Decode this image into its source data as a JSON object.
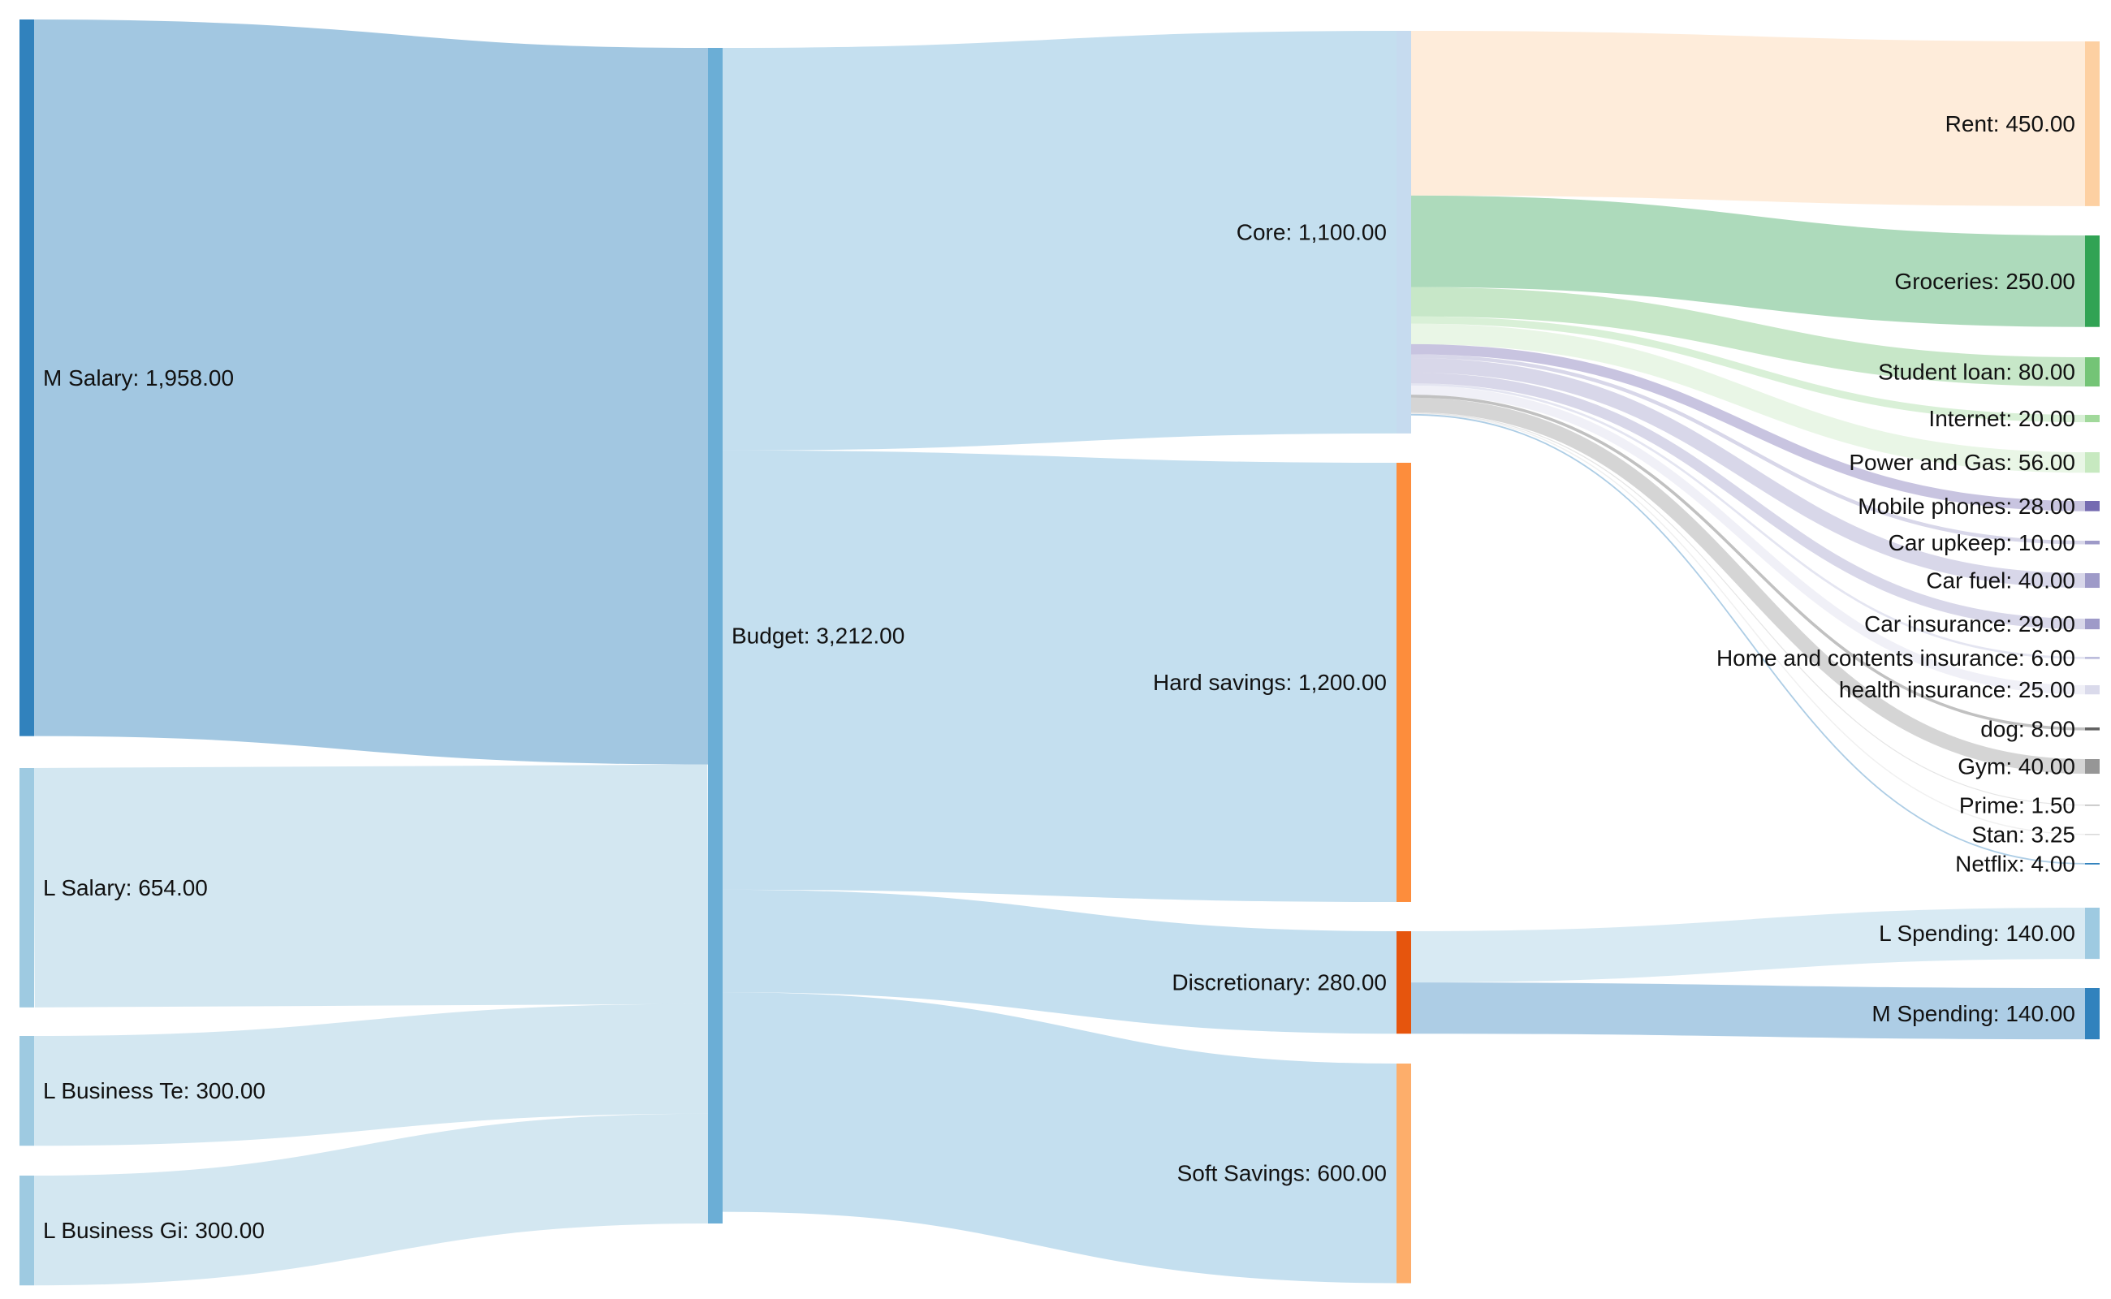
{
  "chart_data": {
    "type": "sankey",
    "value_format": "0,0.00",
    "nodes": [
      {
        "id": "m_salary",
        "label": "M Salary",
        "value": 1958.0,
        "color": "#3182bd"
      },
      {
        "id": "l_salary",
        "label": "L Salary",
        "value": 654.0,
        "color": "#9ecae1"
      },
      {
        "id": "l_bus_te",
        "label": "L Business Te",
        "value": 300.0,
        "color": "#9ecae1"
      },
      {
        "id": "l_bus_gi",
        "label": "L Business Gi",
        "value": 300.0,
        "color": "#9ecae1"
      },
      {
        "id": "budget",
        "label": "Budget",
        "value": 3212.0,
        "color": "#6baed6"
      },
      {
        "id": "core",
        "label": "Core",
        "value": 1100.0,
        "color": "#c6dbef"
      },
      {
        "id": "hard",
        "label": "Hard savings",
        "value": 1200.0,
        "color": "#fd8d3c"
      },
      {
        "id": "disc",
        "label": "Discretionary",
        "value": 280.0,
        "color": "#e6550d"
      },
      {
        "id": "soft",
        "label": "Soft Savings",
        "value": 600.0,
        "color": "#fdae6b"
      },
      {
        "id": "rent",
        "label": "Rent",
        "value": 450.0,
        "color": "#fdd0a2"
      },
      {
        "id": "groceries",
        "label": "Groceries",
        "value": 250.0,
        "color": "#31a354"
      },
      {
        "id": "student",
        "label": "Student loan",
        "value": 80.0,
        "color": "#74c476"
      },
      {
        "id": "internet",
        "label": "Internet",
        "value": 20.0,
        "color": "#a1d99b"
      },
      {
        "id": "power",
        "label": "Power and Gas",
        "value": 56.0,
        "color": "#c7e9c0"
      },
      {
        "id": "mobile",
        "label": "Mobile phones",
        "value": 28.0,
        "color": "#756bb1"
      },
      {
        "id": "car_upkeep",
        "label": "Car upkeep",
        "value": 10.0,
        "color": "#9e9ac8"
      },
      {
        "id": "car_fuel",
        "label": "Car fuel",
        "value": 40.0,
        "color": "#9e9ac8"
      },
      {
        "id": "car_ins",
        "label": "Car insurance",
        "value": 29.0,
        "color": "#9e9ac8"
      },
      {
        "id": "home_ins",
        "label": "Home and contents insurance",
        "value": 6.0,
        "color": "#bcbddc"
      },
      {
        "id": "health",
        "label": "health insurance",
        "value": 25.0,
        "color": "#dadaeb"
      },
      {
        "id": "dog",
        "label": "dog",
        "value": 8.0,
        "color": "#636363"
      },
      {
        "id": "gym",
        "label": "Gym",
        "value": 40.0,
        "color": "#969696"
      },
      {
        "id": "prime",
        "label": "Prime",
        "value": 1.5,
        "color": "#bdbdbd"
      },
      {
        "id": "stan",
        "label": "Stan",
        "value": 3.25,
        "color": "#d9d9d9"
      },
      {
        "id": "netflix",
        "label": "Netflix",
        "value": 4.0,
        "color": "#3182bd"
      },
      {
        "id": "l_spend",
        "label": "L Spending",
        "value": 140.0,
        "color": "#9ecae1"
      },
      {
        "id": "m_spend",
        "label": "M Spending",
        "value": 140.0,
        "color": "#3182bd"
      }
    ],
    "links": [
      {
        "source": "m_salary",
        "target": "budget",
        "value": 1958.0
      },
      {
        "source": "l_salary",
        "target": "budget",
        "value": 654.0
      },
      {
        "source": "l_bus_te",
        "target": "budget",
        "value": 300.0
      },
      {
        "source": "l_bus_gi",
        "target": "budget",
        "value": 300.0
      },
      {
        "source": "budget",
        "target": "core",
        "value": 1100.0
      },
      {
        "source": "budget",
        "target": "hard",
        "value": 1200.0
      },
      {
        "source": "budget",
        "target": "disc",
        "value": 280.0
      },
      {
        "source": "budget",
        "target": "soft",
        "value": 600.0
      },
      {
        "source": "core",
        "target": "rent",
        "value": 450.0
      },
      {
        "source": "core",
        "target": "groceries",
        "value": 250.0
      },
      {
        "source": "core",
        "target": "student",
        "value": 80.0
      },
      {
        "source": "core",
        "target": "internet",
        "value": 20.0
      },
      {
        "source": "core",
        "target": "power",
        "value": 56.0
      },
      {
        "source": "core",
        "target": "mobile",
        "value": 28.0
      },
      {
        "source": "core",
        "target": "car_upkeep",
        "value": 10.0
      },
      {
        "source": "core",
        "target": "car_fuel",
        "value": 40.0
      },
      {
        "source": "core",
        "target": "car_ins",
        "value": 29.0
      },
      {
        "source": "core",
        "target": "home_ins",
        "value": 6.0
      },
      {
        "source": "core",
        "target": "health",
        "value": 25.0
      },
      {
        "source": "core",
        "target": "dog",
        "value": 8.0
      },
      {
        "source": "core",
        "target": "gym",
        "value": 40.0
      },
      {
        "source": "core",
        "target": "prime",
        "value": 1.5
      },
      {
        "source": "core",
        "target": "stan",
        "value": 3.25
      },
      {
        "source": "core",
        "target": "netflix",
        "value": 4.0
      },
      {
        "source": "disc",
        "target": "l_spend",
        "value": 140.0
      },
      {
        "source": "disc",
        "target": "m_spend",
        "value": 140.0
      }
    ]
  }
}
